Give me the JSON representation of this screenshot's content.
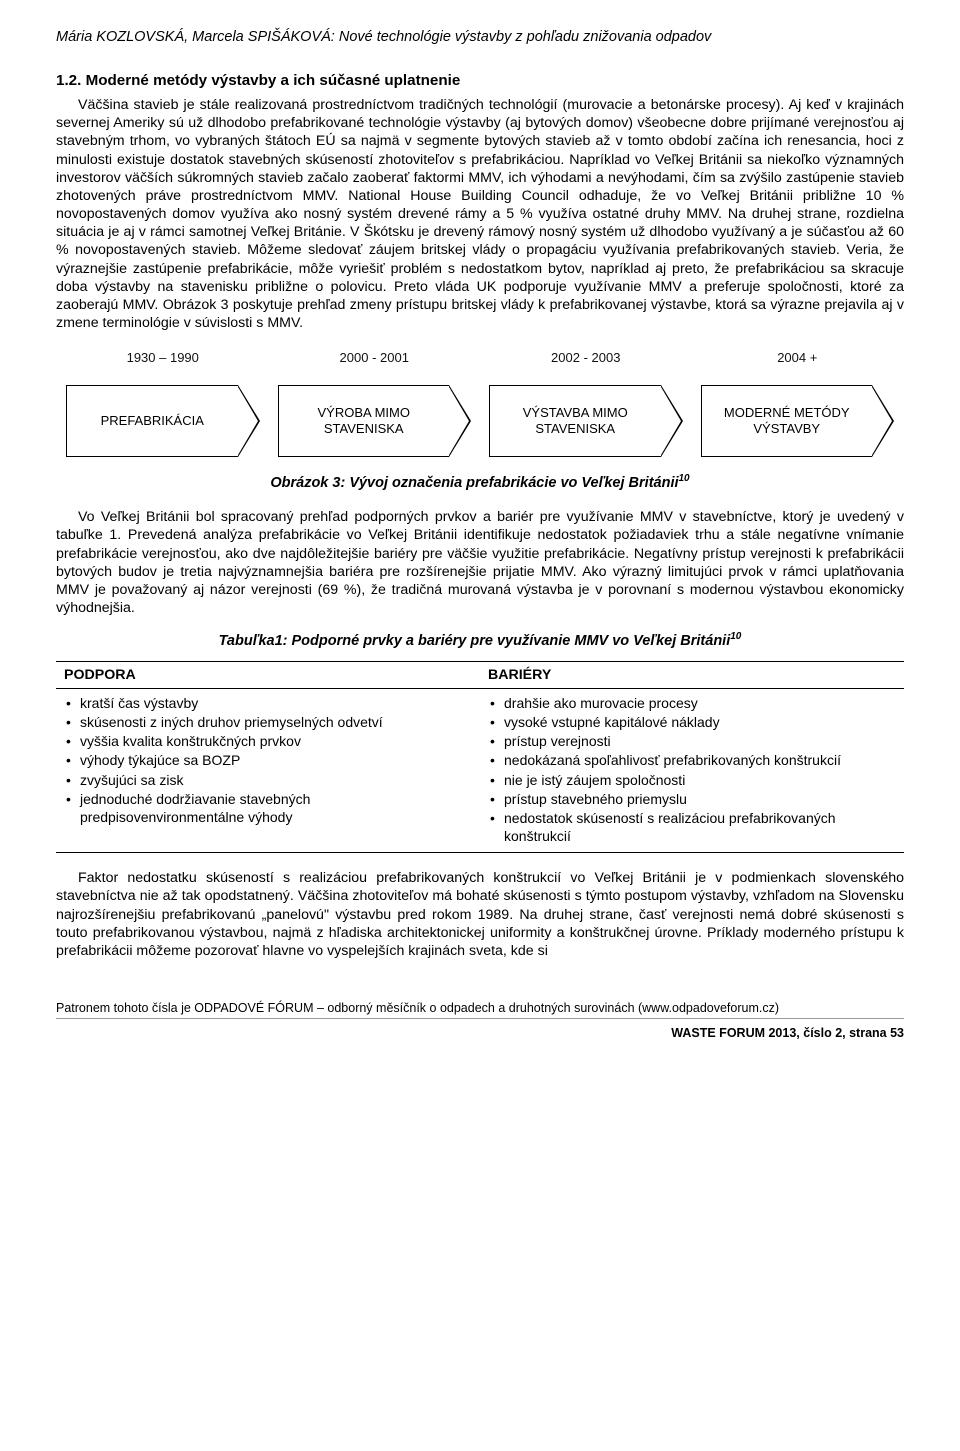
{
  "header": {
    "running_head": "Mária KOZLOVSKÁ, Marcela SPIŠÁKOVÁ: Nové technológie výstavby z pohľadu znižovania odpadov"
  },
  "section": {
    "number": "1.2.",
    "title": "Moderné metódy výstavby a ich súčasné uplatnenie"
  },
  "paragraphs": {
    "p1": "Väčšina stavieb je stále realizovaná prostredníctvom tradičných technológií (murovacie a betonárske procesy). Aj keď v krajinách severnej Ameriky sú už dlhodobo prefabrikované technológie výstavby (aj bytových domov) všeobecne dobre prijímané verejnosťou aj stavebným trhom, vo vybraných štátoch EÚ sa najmä v segmente bytových stavieb až v tomto období začína ich renesancia, hoci z minulosti existuje dostatok stavebných skúseností zhotoviteľov s prefabrikáciou. Napríklad vo Veľkej Británii sa niekoľko významných investorov väčších súkromných stavieb začalo zaoberať faktormi MMV, ich výhodami a nevýhodami, čím sa zvýšilo zastúpenie stavieb zhotovených práve prostredníctvom MMV. National House Building Council odhaduje, že vo Veľkej Británii približne 10 % novopostavených domov využíva ako nosný systém drevené rámy a 5 % využíva ostatné druhy MMV. Na druhej strane, rozdielna situácia je aj v rámci samotnej Veľkej Británie. V Škótsku je drevený rámový nosný systém už dlhodobo využívaný a je súčasťou až 60 % novopostavených stavieb. Môžeme sledovať záujem britskej vlády o propagáciu využívania prefabrikovaných stavieb. Veria, že výraznejšie zastúpenie prefabrikácie, môže vyriešiť problém s nedostatkom bytov, napríklad aj preto, že prefabrikáciou sa skracuje doba výstavby na stavenisku približne o polovicu. Preto vláda UK podporuje využívanie MMV a preferuje spoločnosti, ktoré za zaoberajú MMV. Obrázok 3 poskytuje prehľad zmeny prístupu britskej vlády k prefabrikovanej výstavbe, ktorá sa výrazne prejavila aj v zmene terminológie v súvislosti s MMV.",
    "p2": "Vo Veľkej Británii bol spracovaný prehľad podporných prvkov a bariér pre využívanie MMV v stavebníctve, ktorý je uvedený v tabuľke 1. Prevedená analýza prefabrikácie vo Veľkej Británii identifikuje nedostatok požiadaviek trhu a stále negatívne vnímanie prefabrikácie verejnosťou, ako dve najdôležitejšie bariéry pre väčšie využitie prefabrikácie. Negatívny prístup verejnosti k prefabrikácii bytových budov je tretia najvýznamnejšia bariéra pre rozšírenejšie prijatie MMV. Ako výrazný limitujúci prvok v rámci uplatňovania MMV je považovaný aj názor verejnosti (69 %), že tradičná murovaná výstavba je v porovnaní s modernou výstavbou ekonomicky výhodnejšia.",
    "p3": "Faktor nedostatku skúseností s realizáciou prefabrikovaných konštrukcií vo Veľkej Británii je v podmienkach slovenského stavebníctva nie až tak opodstatnený. Väčšina zhotoviteľov má bohaté skúsenosti s týmto postupom výstavby, vzhľadom na Slovensku najrozšírenejšiu prefabrikovanú „panelovú\" výstavbu pred rokom 1989. Na druhej strane, časť verejnosti nemá dobré skúsenosti s touto prefabrikovanou výstavbou, najmä z hľadiska architektonickej uniformity a konštrukčnej úrovne. Príklady moderného prístupu k prefabrikácii môžeme pozorovať hlavne vo vyspelejších krajinách sveta, kde si"
  },
  "figure3": {
    "caption": "Obrázok 3: Vývoj označenia prefabrikácie vo Veľkej Británii",
    "cite": "10",
    "type": "flowchart",
    "stroke_color": "#000000",
    "background": "#ffffff",
    "font_size": 13,
    "arrow_height": 72,
    "chevron_width": 22,
    "steps": [
      {
        "period": "1930 – 1990",
        "label": "PREFABRIKÁCIA"
      },
      {
        "period": "2000 - 2001",
        "label": "VÝROBA MIMO STAVENISKA"
      },
      {
        "period": "2002 - 2003",
        "label": "VÝSTAVBA MIMO STAVENISKA"
      },
      {
        "period": "2004 +",
        "label": "MODERNÉ METÓDY VÝSTAVBY"
      }
    ]
  },
  "table1": {
    "caption": "Tabuľka1: Podporné prvky a bariéry pre využívanie MMV vo Veľkej Británii",
    "cite": "10",
    "type": "table",
    "columns": [
      "PODPORA",
      "BARIÉRY"
    ],
    "rows": {
      "podpora": [
        "kratší čas výstavby",
        "skúsenosti z iných druhov priemyselných odvetví",
        "vyššia kvalita konštrukčných prvkov",
        "výhody týkajúce sa BOZP",
        "zvyšujúci sa zisk",
        "jednoduché dodržiavanie stavebných predpisovenvironmentálne výhody"
      ],
      "bariery": [
        "drahšie ako murovacie procesy",
        "vysoké vstupné kapitálové náklady",
        "prístup verejnosti",
        "nedokázaná spoľahlivosť prefabrikovaných konštrukcií",
        "nie je istý záujem spoločnosti",
        "prístup stavebného priemyslu",
        "nedostatok skúseností s realizáciou prefabrikovaných konštrukcií"
      ]
    }
  },
  "footer": {
    "sponsor": "Patronem tohoto čísla je ODPADOVÉ FÓRUM – odborný měsíčník o odpadech a druhotných surovinách (www.odpadoveforum.cz)",
    "issue": "WASTE FORUM 2013, číslo 2, strana 53"
  }
}
